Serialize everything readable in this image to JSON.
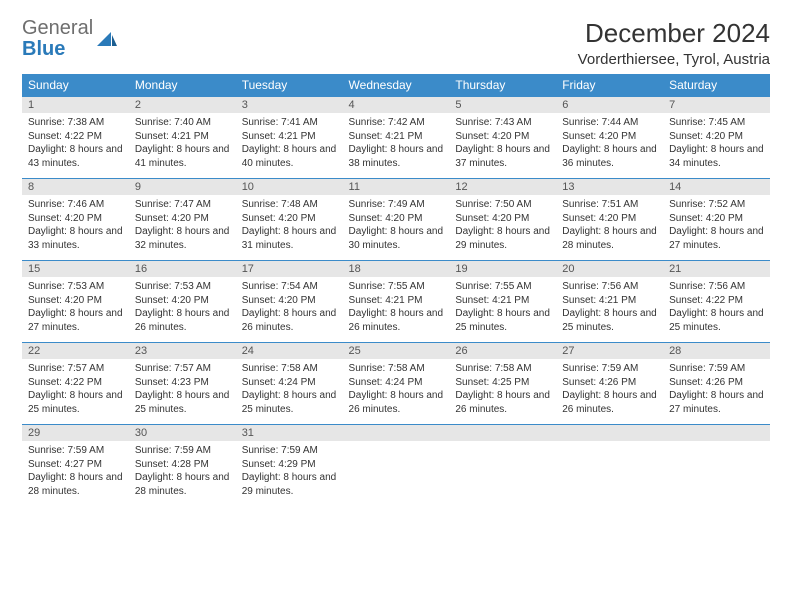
{
  "brand": {
    "part1": "General",
    "part2": "Blue"
  },
  "title": "December 2024",
  "location": "Vorderthiersee, Tyrol, Austria",
  "colors": {
    "header_bg": "#3b8bc9",
    "header_text": "#ffffff",
    "daynum_bg": "#e6e6e6",
    "rule": "#3b8bc9",
    "logo_gray": "#6e6e6e",
    "logo_blue": "#2a7ab9"
  },
  "weekdays": [
    "Sunday",
    "Monday",
    "Tuesday",
    "Wednesday",
    "Thursday",
    "Friday",
    "Saturday"
  ],
  "weeks": [
    [
      {
        "n": "1",
        "sr": "7:38 AM",
        "ss": "4:22 PM",
        "dl": "8 hours and 43 minutes."
      },
      {
        "n": "2",
        "sr": "7:40 AM",
        "ss": "4:21 PM",
        "dl": "8 hours and 41 minutes."
      },
      {
        "n": "3",
        "sr": "7:41 AM",
        "ss": "4:21 PM",
        "dl": "8 hours and 40 minutes."
      },
      {
        "n": "4",
        "sr": "7:42 AM",
        "ss": "4:21 PM",
        "dl": "8 hours and 38 minutes."
      },
      {
        "n": "5",
        "sr": "7:43 AM",
        "ss": "4:20 PM",
        "dl": "8 hours and 37 minutes."
      },
      {
        "n": "6",
        "sr": "7:44 AM",
        "ss": "4:20 PM",
        "dl": "8 hours and 36 minutes."
      },
      {
        "n": "7",
        "sr": "7:45 AM",
        "ss": "4:20 PM",
        "dl": "8 hours and 34 minutes."
      }
    ],
    [
      {
        "n": "8",
        "sr": "7:46 AM",
        "ss": "4:20 PM",
        "dl": "8 hours and 33 minutes."
      },
      {
        "n": "9",
        "sr": "7:47 AM",
        "ss": "4:20 PM",
        "dl": "8 hours and 32 minutes."
      },
      {
        "n": "10",
        "sr": "7:48 AM",
        "ss": "4:20 PM",
        "dl": "8 hours and 31 minutes."
      },
      {
        "n": "11",
        "sr": "7:49 AM",
        "ss": "4:20 PM",
        "dl": "8 hours and 30 minutes."
      },
      {
        "n": "12",
        "sr": "7:50 AM",
        "ss": "4:20 PM",
        "dl": "8 hours and 29 minutes."
      },
      {
        "n": "13",
        "sr": "7:51 AM",
        "ss": "4:20 PM",
        "dl": "8 hours and 28 minutes."
      },
      {
        "n": "14",
        "sr": "7:52 AM",
        "ss": "4:20 PM",
        "dl": "8 hours and 27 minutes."
      }
    ],
    [
      {
        "n": "15",
        "sr": "7:53 AM",
        "ss": "4:20 PM",
        "dl": "8 hours and 27 minutes."
      },
      {
        "n": "16",
        "sr": "7:53 AM",
        "ss": "4:20 PM",
        "dl": "8 hours and 26 minutes."
      },
      {
        "n": "17",
        "sr": "7:54 AM",
        "ss": "4:20 PM",
        "dl": "8 hours and 26 minutes."
      },
      {
        "n": "18",
        "sr": "7:55 AM",
        "ss": "4:21 PM",
        "dl": "8 hours and 26 minutes."
      },
      {
        "n": "19",
        "sr": "7:55 AM",
        "ss": "4:21 PM",
        "dl": "8 hours and 25 minutes."
      },
      {
        "n": "20",
        "sr": "7:56 AM",
        "ss": "4:21 PM",
        "dl": "8 hours and 25 minutes."
      },
      {
        "n": "21",
        "sr": "7:56 AM",
        "ss": "4:22 PM",
        "dl": "8 hours and 25 minutes."
      }
    ],
    [
      {
        "n": "22",
        "sr": "7:57 AM",
        "ss": "4:22 PM",
        "dl": "8 hours and 25 minutes."
      },
      {
        "n": "23",
        "sr": "7:57 AM",
        "ss": "4:23 PM",
        "dl": "8 hours and 25 minutes."
      },
      {
        "n": "24",
        "sr": "7:58 AM",
        "ss": "4:24 PM",
        "dl": "8 hours and 25 minutes."
      },
      {
        "n": "25",
        "sr": "7:58 AM",
        "ss": "4:24 PM",
        "dl": "8 hours and 26 minutes."
      },
      {
        "n": "26",
        "sr": "7:58 AM",
        "ss": "4:25 PM",
        "dl": "8 hours and 26 minutes."
      },
      {
        "n": "27",
        "sr": "7:59 AM",
        "ss": "4:26 PM",
        "dl": "8 hours and 26 minutes."
      },
      {
        "n": "28",
        "sr": "7:59 AM",
        "ss": "4:26 PM",
        "dl": "8 hours and 27 minutes."
      }
    ],
    [
      {
        "n": "29",
        "sr": "7:59 AM",
        "ss": "4:27 PM",
        "dl": "8 hours and 28 minutes."
      },
      {
        "n": "30",
        "sr": "7:59 AM",
        "ss": "4:28 PM",
        "dl": "8 hours and 28 minutes."
      },
      {
        "n": "31",
        "sr": "7:59 AM",
        "ss": "4:29 PM",
        "dl": "8 hours and 29 minutes."
      },
      {
        "empty": true
      },
      {
        "empty": true
      },
      {
        "empty": true
      },
      {
        "empty": true
      }
    ]
  ],
  "labels": {
    "sunrise": "Sunrise:",
    "sunset": "Sunset:",
    "daylight": "Daylight:"
  }
}
